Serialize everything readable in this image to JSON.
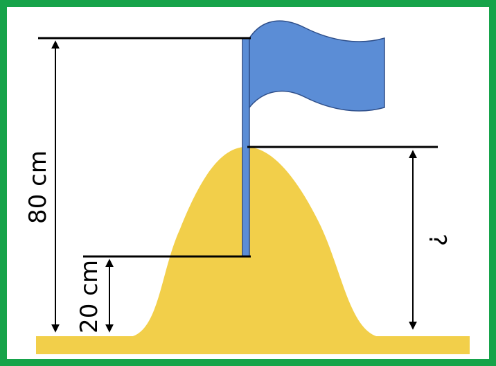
{
  "labels": {
    "total_height": "80 cm",
    "base_height": "20 cm",
    "unknown": "?"
  },
  "colors": {
    "border": "#16a34a",
    "sand": "#F2CF4A",
    "flag": "#5B8DD6",
    "flag_outline": "#2F4F8A",
    "line": "#000000"
  }
}
